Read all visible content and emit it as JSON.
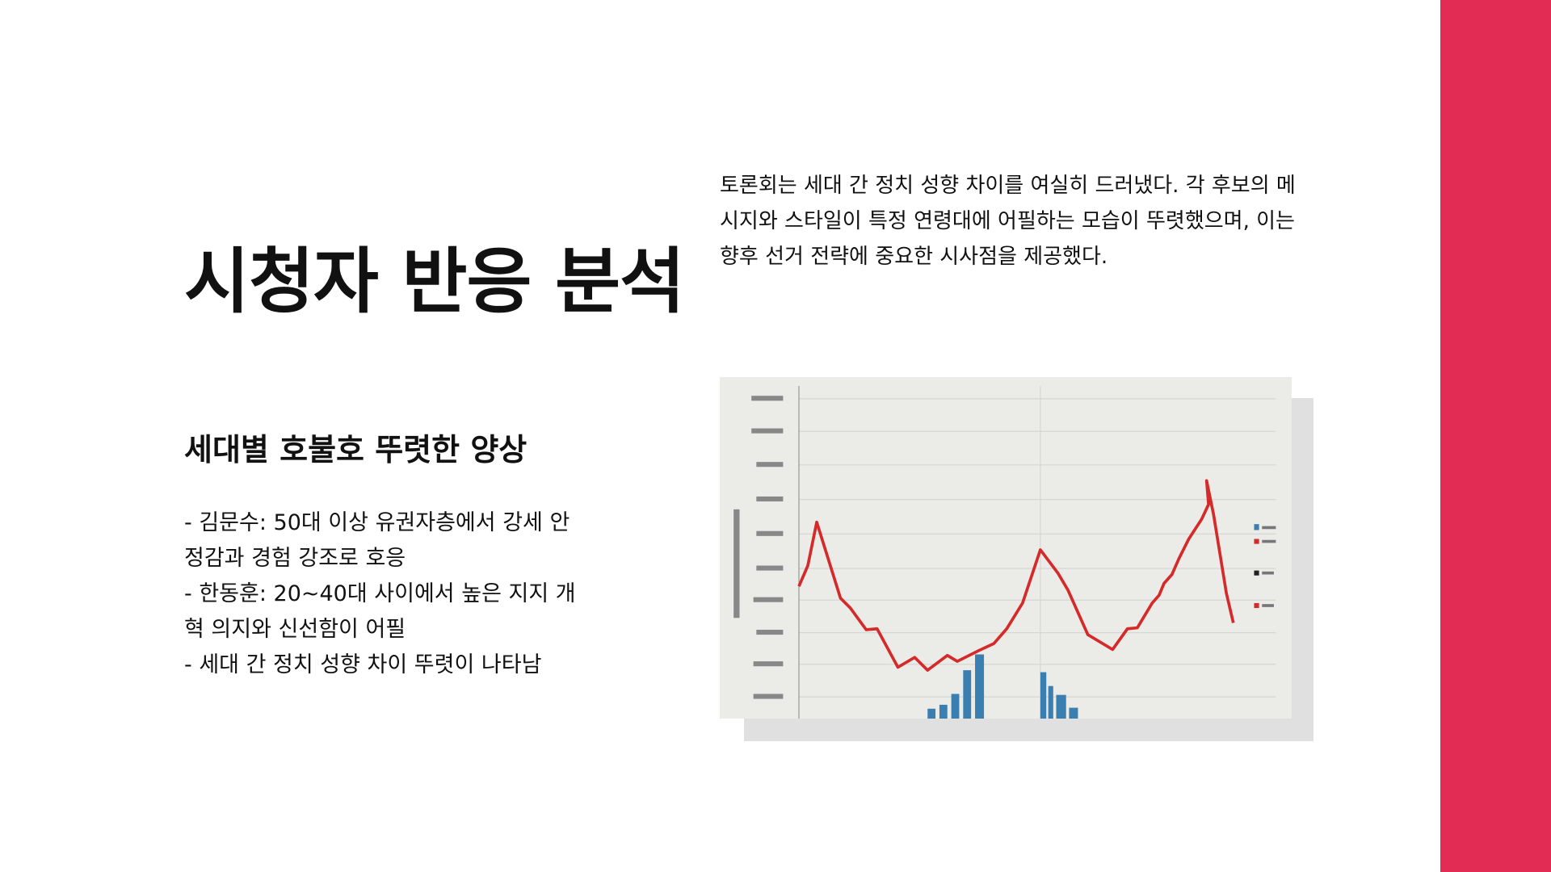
{
  "header": {
    "title": "시청자 반응 분석"
  },
  "intro": "토론회는 세대 간 정치 성향 차이를 여실히 드러냈다. 각 후보의 메시지와 스타일이 특정 연령대에 어필하는 모습이 뚜렷했으며, 이는 향후 선거 전략에 중요한 시사점을 제공했다.",
  "section": {
    "heading": "세대별 호불호 뚜렷한 양상",
    "bullets": [
      "- 김문수: 50대 이상 유권자층에서 강세 안정감과 경험 강조로 호응",
      "- 한동훈: 20~40대 사이에서 높은 지지 개혁 의지와 신선함이 어필",
      "- 세대 간 정치 성향 차이 뚜렷이 나타남"
    ]
  }
}
